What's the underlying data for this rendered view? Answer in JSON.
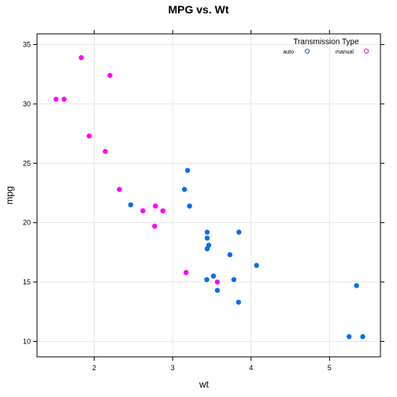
{
  "chart_data": {
    "type": "scatter",
    "title": "MPG vs. Wt",
    "xlabel": "wt",
    "ylabel": "mpg",
    "xlim": [
      1.27,
      5.65
    ],
    "ylim": [
      8.7,
      35.9
    ],
    "xticks": [
      2,
      3,
      4,
      5
    ],
    "yticks": [
      10,
      15,
      20,
      25,
      30,
      35
    ],
    "grid": true,
    "legend": {
      "title": "Transmission Type",
      "placement": "top-right",
      "entries": [
        {
          "name": "auto",
          "color": "#0a6cf0"
        },
        {
          "name": "manual",
          "color": "#ff00ff"
        }
      ]
    },
    "series": [
      {
        "name": "auto",
        "color": "#0a6cf0",
        "points": [
          [
            3.215,
            21.4
          ],
          [
            3.44,
            18.7
          ],
          [
            3.46,
            18.1
          ],
          [
            3.57,
            14.3
          ],
          [
            3.19,
            24.4
          ],
          [
            3.15,
            22.8
          ],
          [
            3.44,
            19.2
          ],
          [
            3.44,
            17.8
          ],
          [
            4.07,
            16.4
          ],
          [
            3.73,
            17.3
          ],
          [
            3.78,
            15.2
          ],
          [
            5.25,
            10.4
          ],
          [
            5.424,
            10.4
          ],
          [
            5.345,
            14.7
          ],
          [
            2.465,
            21.5
          ],
          [
            3.52,
            15.5
          ],
          [
            3.435,
            15.2
          ],
          [
            3.84,
            13.3
          ],
          [
            3.845,
            19.2
          ]
        ]
      },
      {
        "name": "manual",
        "color": "#ff00ff",
        "points": [
          [
            2.62,
            21.0
          ],
          [
            2.875,
            21.0
          ],
          [
            2.32,
            22.8
          ],
          [
            2.2,
            32.4
          ],
          [
            1.615,
            30.4
          ],
          [
            1.835,
            33.9
          ],
          [
            1.935,
            27.3
          ],
          [
            2.14,
            26.0
          ],
          [
            1.513,
            30.4
          ],
          [
            3.17,
            15.8
          ],
          [
            2.77,
            19.7
          ],
          [
            3.57,
            15.0
          ],
          [
            2.78,
            21.4
          ]
        ]
      }
    ]
  }
}
